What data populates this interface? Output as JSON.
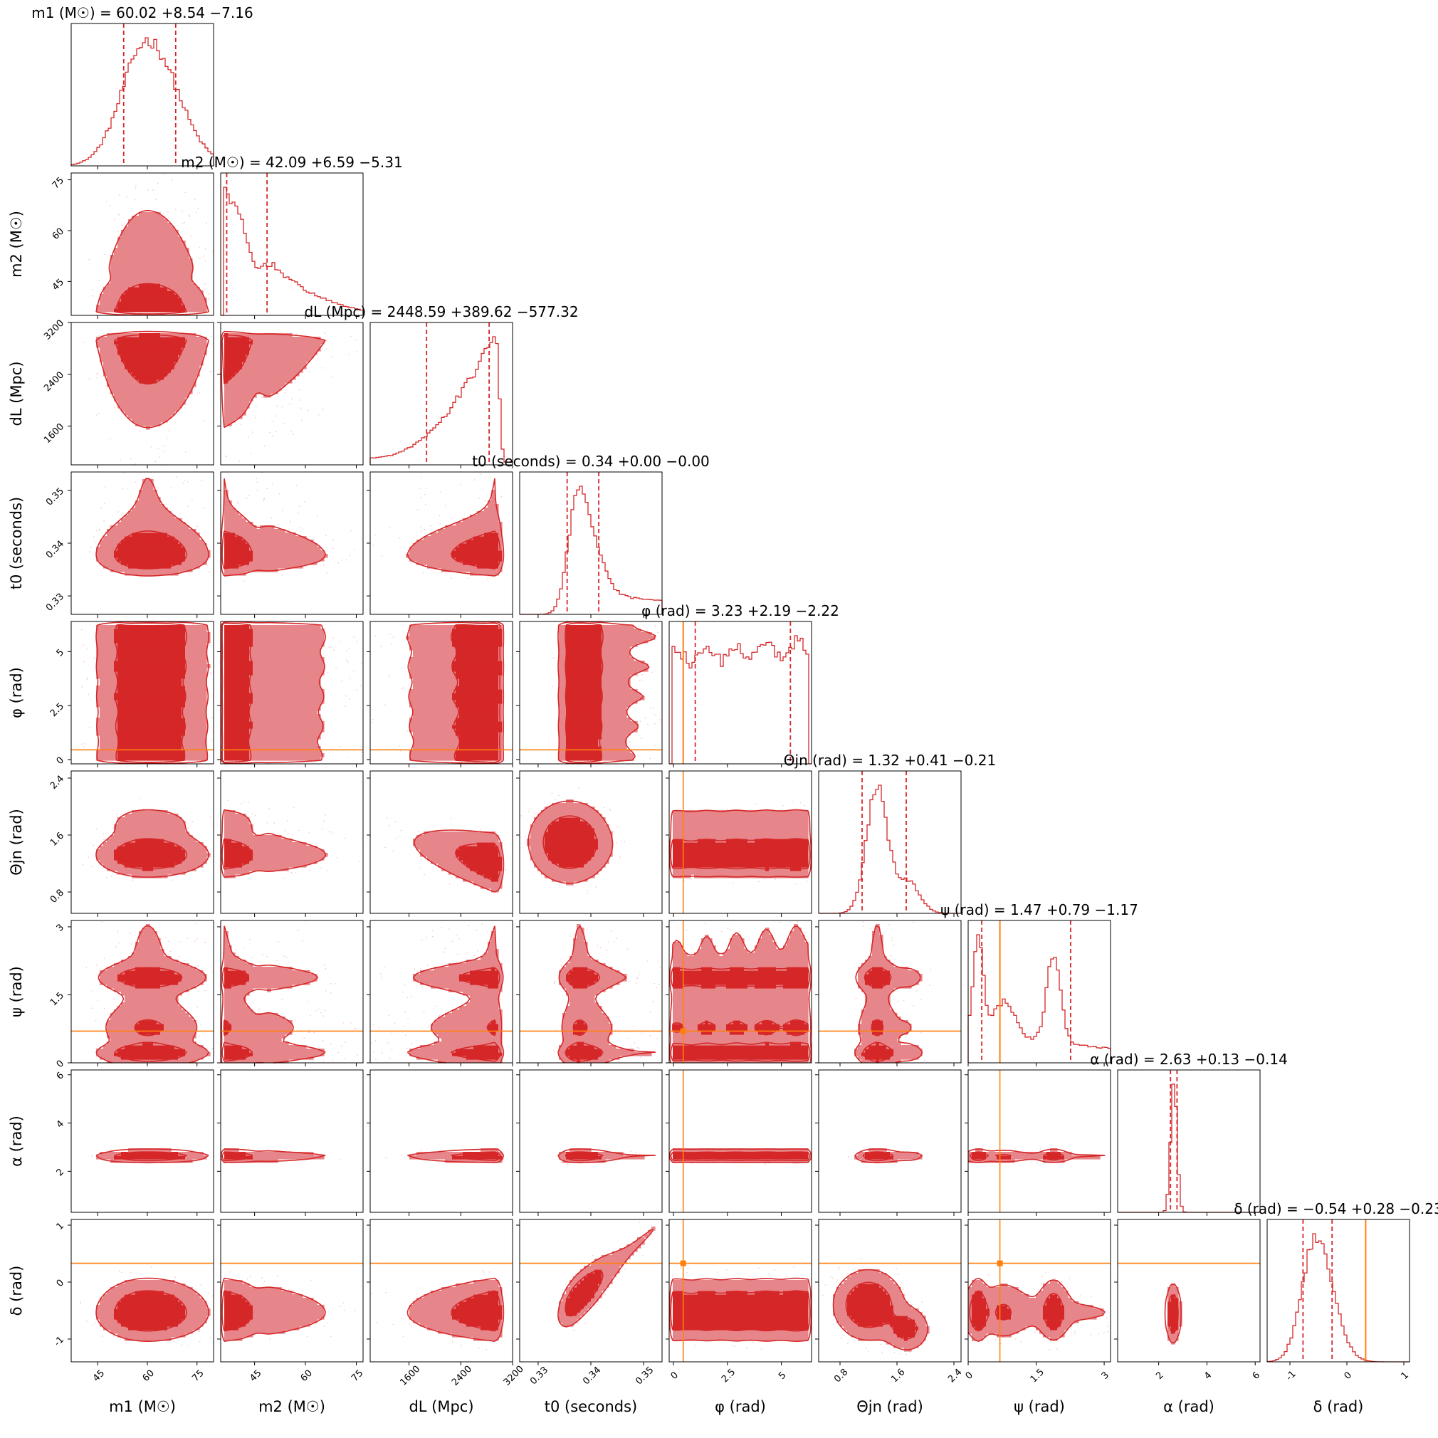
{
  "chart_data": {
    "type": "corner",
    "colors": {
      "posterior": "#d62728",
      "posterior_mid": "#e6868a",
      "posterior_light": "#f4c3c5",
      "truth": "#ff7f0e"
    },
    "parameters": [
      {
        "key": "m1",
        "label": "m1 (M☉)",
        "title": "m1 (M☉) = 60.02 +8.54 −7.16",
        "median": 60.02,
        "plus": 8.54,
        "minus": 7.16,
        "range": [
          37,
          80
        ],
        "ticks": [
          45,
          60,
          75
        ],
        "truth": null
      },
      {
        "key": "m2",
        "label": "m2 (M☉)",
        "title": "m2 (M☉) = 42.09 +6.59 −5.31",
        "median": 42.09,
        "plus": 6.59,
        "minus": 5.31,
        "range": [
          35,
          77
        ],
        "ticks": [
          45,
          60,
          75
        ],
        "truth": null
      },
      {
        "key": "dL",
        "label": "dL (Mpc)",
        "title": "dL (Mpc) = 2448.59 +389.62 −577.32",
        "median": 2448.59,
        "plus": 389.62,
        "minus": 577.32,
        "range": [
          1000,
          3200
        ],
        "ticks": [
          1600,
          2400,
          3200
        ],
        "truth": null
      },
      {
        "key": "t0",
        "label": "t0 (seconds)",
        "title": "t0 (seconds) = 0.34 +0.00 −0.00",
        "median": 0.3375,
        "plus": 0.004,
        "minus": 0.002,
        "range": [
          0.3265,
          0.3535
        ],
        "ticks": [
          0.33,
          0.34,
          0.35
        ],
        "truth": null
      },
      {
        "key": "phi",
        "label": "φ (rad)",
        "title": "φ (rad) = 3.23 +2.19 −2.22",
        "median": 3.23,
        "plus": 2.19,
        "minus": 2.22,
        "range": [
          -0.2,
          6.4
        ],
        "ticks": [
          0.0,
          2.5,
          5.0
        ],
        "truth": 0.45
      },
      {
        "key": "theta",
        "label": "Θjn (rad)",
        "title": "Θjn (rad) = 1.32 +0.41 −0.21",
        "median": 1.32,
        "plus": 0.41,
        "minus": 0.21,
        "range": [
          0.5,
          2.5
        ],
        "ticks": [
          0.8,
          1.6,
          2.4
        ],
        "truth": null
      },
      {
        "key": "psi",
        "label": "ψ (rad)",
        "title": "ψ (rad) = 1.47 +0.79 −1.17",
        "median": 1.47,
        "plus": 0.79,
        "minus": 1.17,
        "range": [
          0.0,
          3.14
        ],
        "ticks": [
          0.0,
          1.5,
          3.0
        ],
        "truth": 0.7
      },
      {
        "key": "alpha",
        "label": "α (rad)",
        "title": "α (rad) = 2.63 +0.13 −0.14",
        "median": 2.63,
        "plus": 0.13,
        "minus": 0.14,
        "range": [
          0.3,
          6.2
        ],
        "ticks": [
          2,
          4,
          6
        ],
        "truth": null
      },
      {
        "key": "delta",
        "label": "δ (rad)",
        "title": "δ (rad) = −0.54 +0.28 −0.23",
        "median": -0.54,
        "plus": 0.28,
        "minus": 0.23,
        "range": [
          -1.4,
          1.1
        ],
        "ticks": [
          -1,
          0,
          1
        ],
        "truth": 0.33
      }
    ],
    "notes_on_shape": {
      "histogram_shapes": [
        "gaussian",
        "decreasing",
        "rising-skew",
        "skewed-right",
        "flat",
        "narrow-peak",
        "bimodal",
        "spike",
        "gaussian"
      ]
    },
    "legend": "none",
    "grid": false
  }
}
